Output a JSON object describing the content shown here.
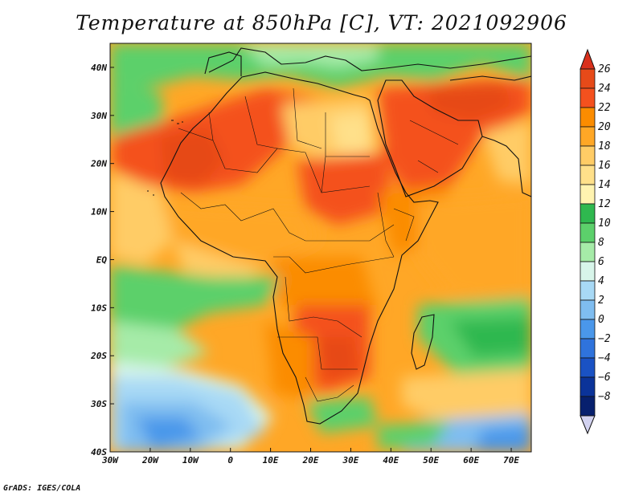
{
  "title": "Temperature at 850hPa [C], VT: 2021092906",
  "credit": "GrADS: IGES/COLA",
  "map": {
    "type": "heatmap",
    "projection": "latlon",
    "lon_range": [
      -30,
      75
    ],
    "lat_range": [
      -40,
      45
    ],
    "x_ticks": [
      {
        "value": -30,
        "label": "30W"
      },
      {
        "value": -20,
        "label": "20W"
      },
      {
        "value": -10,
        "label": "10W"
      },
      {
        "value": 0,
        "label": "0"
      },
      {
        "value": 10,
        "label": "10E"
      },
      {
        "value": 20,
        "label": "20E"
      },
      {
        "value": 30,
        "label": "30E"
      },
      {
        "value": 40,
        "label": "40E"
      },
      {
        "value": 50,
        "label": "50E"
      },
      {
        "value": 60,
        "label": "60E"
      },
      {
        "value": 70,
        "label": "70E"
      }
    ],
    "y_ticks": [
      {
        "value": 40,
        "label": "40N"
      },
      {
        "value": 30,
        "label": "30N"
      },
      {
        "value": 20,
        "label": "20N"
      },
      {
        "value": 10,
        "label": "10N"
      },
      {
        "value": 0,
        "label": "EQ"
      },
      {
        "value": -10,
        "label": "10S"
      },
      {
        "value": -20,
        "label": "20S"
      },
      {
        "value": -30,
        "label": "30S"
      },
      {
        "value": -40,
        "label": "40S"
      }
    ]
  },
  "colorbar": {
    "levels": [
      {
        "label": "26",
        "color": "#e64a19"
      },
      {
        "label": "24",
        "color": "#f4511e"
      },
      {
        "label": "22",
        "color": "#fb8c00"
      },
      {
        "label": "20",
        "color": "#ffa726"
      },
      {
        "label": "18",
        "color": "#ffcc66"
      },
      {
        "label": "16",
        "color": "#ffe08a"
      },
      {
        "label": "14",
        "color": "#fff3b0"
      },
      {
        "label": "12",
        "color": "#2fb84f"
      },
      {
        "label": "10",
        "color": "#5cd06b"
      },
      {
        "label": "8",
        "color": "#a6eba8"
      },
      {
        "label": "6",
        "color": "#d8f5ea"
      },
      {
        "label": "4",
        "color": "#a8d9f5"
      },
      {
        "label": "2",
        "color": "#7fbdf0"
      },
      {
        "label": "0",
        "color": "#4a97ea"
      },
      {
        "label": "−2",
        "color": "#2f73dc"
      },
      {
        "label": "−4",
        "color": "#1a52c4"
      },
      {
        "label": "−6",
        "color": "#0b3399"
      },
      {
        "label": "−8",
        "color": "#07206e"
      }
    ],
    "top_arrow_color": "#d9301c",
    "bottom_arrow_color": "#d2d2f0"
  }
}
